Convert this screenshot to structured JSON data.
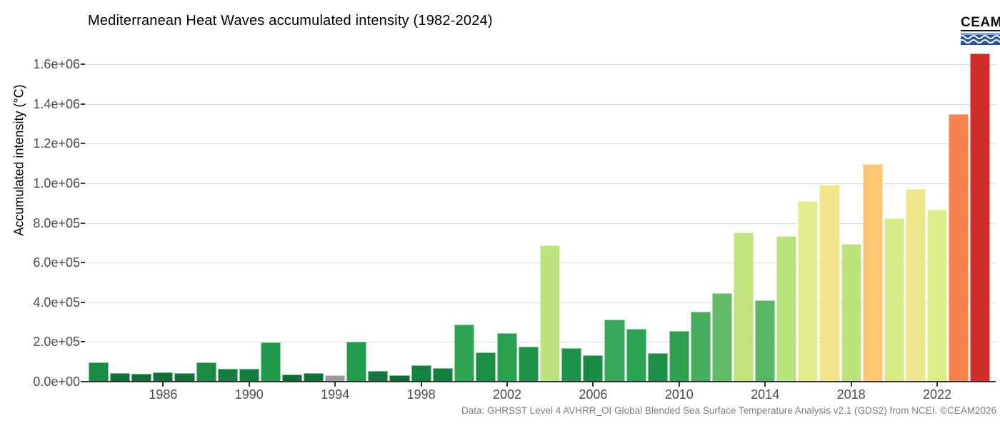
{
  "header": {
    "title": "Mediterranean Heat Waves accumulated intensity (1982-2024)",
    "logo_text": "CEAM"
  },
  "caption": "Data: GHRSST Level 4 AVHRR_OI Global Blended Sea Surface Temperature Analysis v2.1 (GDS2) from NCEI. ©CEAM2026",
  "colors": {
    "background": "#ffffff",
    "gridline": "#dcdcdc",
    "axis_line": "#333333",
    "tick_label": "#4d4d4d",
    "title_text": "#000000",
    "caption_text": "#808080",
    "missing_data_bar": "#9E9E9E",
    "logo_blue": "#2253A0",
    "logo_light_blue": "#7FA9D9"
  },
  "chart_data": {
    "type": "bar",
    "title": "Mediterranean Heat Waves accumulated intensity (1982-2024)",
    "xlabel": "",
    "ylabel": "Accumulated intensity (°C)",
    "ylim": [
      0,
      1700000
    ],
    "grid": "horizontal-only",
    "legend": "none",
    "color_mapping": "value mapped to reversed red-yellow-green ramp; gray = missing data (1994)",
    "y_ticks": [
      {
        "value": 0,
        "label": "0.0e+00"
      },
      {
        "value": 200000,
        "label": "2.0e+05"
      },
      {
        "value": 400000,
        "label": "4.0e+05"
      },
      {
        "value": 600000,
        "label": "6.0e+05"
      },
      {
        "value": 800000,
        "label": "8.0e+05"
      },
      {
        "value": 1000000,
        "label": "1.0e+06"
      },
      {
        "value": 1200000,
        "label": "1.2e+06"
      },
      {
        "value": 1400000,
        "label": "1.4e+06"
      },
      {
        "value": 1600000,
        "label": "1.6e+06"
      }
    ],
    "x_ticks": [
      1986,
      1990,
      1994,
      1998,
      2002,
      2006,
      2010,
      2014,
      2018,
      2022
    ],
    "bars": [
      {
        "year": 1983,
        "value": 96000,
        "color": "#1A8A45"
      },
      {
        "year": 1984,
        "value": 43000,
        "color": "#107238"
      },
      {
        "year": 1985,
        "value": 40000,
        "color": "#0F7037"
      },
      {
        "year": 1986,
        "value": 45000,
        "color": "#107238"
      },
      {
        "year": 1987,
        "value": 43000,
        "color": "#107238"
      },
      {
        "year": 1988,
        "value": 96000,
        "color": "#1A8A45"
      },
      {
        "year": 1989,
        "value": 65000,
        "color": "#147C3E"
      },
      {
        "year": 1990,
        "value": 63000,
        "color": "#147C3E"
      },
      {
        "year": 1991,
        "value": 197000,
        "color": "#229A4D"
      },
      {
        "year": 1992,
        "value": 36000,
        "color": "#0E6E36"
      },
      {
        "year": 1993,
        "value": 44000,
        "color": "#107238"
      },
      {
        "year": 1994,
        "value": 31000,
        "color": "#9E9E9E",
        "missing": true
      },
      {
        "year": 1995,
        "value": 203000,
        "color": "#239B4E"
      },
      {
        "year": 1996,
        "value": 55000,
        "color": "#127740"
      },
      {
        "year": 1997,
        "value": 31000,
        "color": "#0D6D35"
      },
      {
        "year": 1998,
        "value": 81000,
        "color": "#168242"
      },
      {
        "year": 1999,
        "value": 69000,
        "color": "#147D3F"
      },
      {
        "year": 2000,
        "value": 288000,
        "color": "#2DA454"
      },
      {
        "year": 2001,
        "value": 147000,
        "color": "#1C8F47"
      },
      {
        "year": 2002,
        "value": 243000,
        "color": "#28A050"
      },
      {
        "year": 2003,
        "value": 176000,
        "color": "#1F9349"
      },
      {
        "year": 2004,
        "value": 687000,
        "color": "#BCE37D"
      },
      {
        "year": 2005,
        "value": 170000,
        "color": "#1E9248"
      },
      {
        "year": 2006,
        "value": 134000,
        "color": "#198A44"
      },
      {
        "year": 2007,
        "value": 313000,
        "color": "#37A75A"
      },
      {
        "year": 2008,
        "value": 267000,
        "color": "#2BA152"
      },
      {
        "year": 2009,
        "value": 144000,
        "color": "#1C8E46"
      },
      {
        "year": 2010,
        "value": 255000,
        "color": "#2F9E51"
      },
      {
        "year": 2011,
        "value": 354000,
        "color": "#46AD5F"
      },
      {
        "year": 2012,
        "value": 446000,
        "color": "#62BA69"
      },
      {
        "year": 2013,
        "value": 752000,
        "color": "#BFE47E"
      },
      {
        "year": 2014,
        "value": 411000,
        "color": "#59B665"
      },
      {
        "year": 2015,
        "value": 734000,
        "color": "#BAE27B"
      },
      {
        "year": 2016,
        "value": 909000,
        "color": "#E2EC8C"
      },
      {
        "year": 2017,
        "value": 993000,
        "color": "#F0E78D"
      },
      {
        "year": 2018,
        "value": 693000,
        "color": "#BDE37E"
      },
      {
        "year": 2019,
        "value": 1097000,
        "color": "#FCC877"
      },
      {
        "year": 2020,
        "value": 822000,
        "color": "#D4EB87"
      },
      {
        "year": 2021,
        "value": 970000,
        "color": "#EDE68C"
      },
      {
        "year": 2022,
        "value": 867000,
        "color": "#DCEE8A"
      },
      {
        "year": 2023,
        "value": 1349000,
        "color": "#F5834D"
      },
      {
        "year": 2024,
        "value": 1655000,
        "color": "#D02C28"
      }
    ]
  }
}
